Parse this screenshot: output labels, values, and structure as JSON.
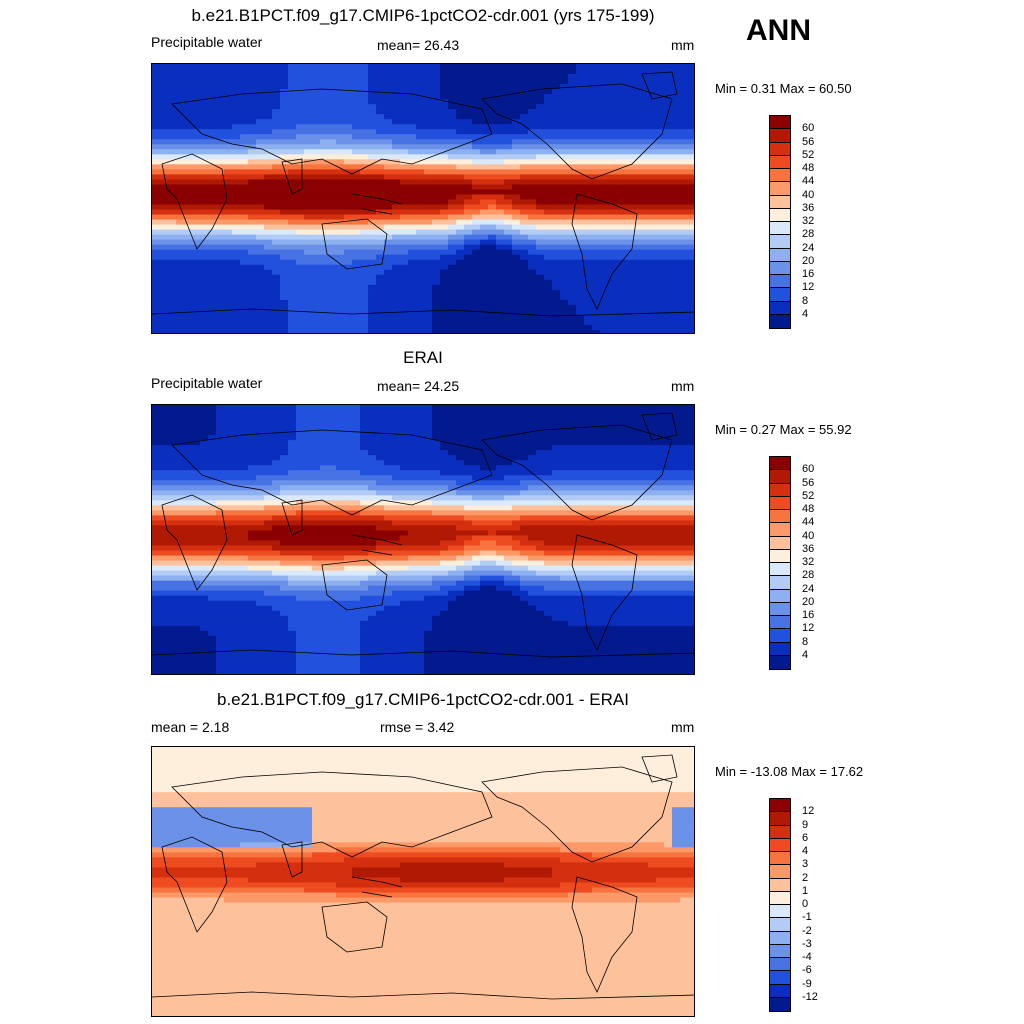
{
  "season": "ANN",
  "panels": [
    {
      "title": "b.e21.B1PCT.f09_g17.CMIP6-1pctCO2-cdr.001 (yrs 175-199)",
      "left_label": "Precipitable water",
      "center_label": "mean=  26.43",
      "units": "mm",
      "minmax": "Min =   0.31 Max =  60.50",
      "colorbar": {
        "labels": [
          "60",
          "56",
          "52",
          "48",
          "44",
          "40",
          "36",
          "32",
          "28",
          "24",
          "20",
          "16",
          "12",
          "8",
          "4"
        ],
        "colors": [
          "#8b0000",
          "#b01a04",
          "#d4300f",
          "#ee4b21",
          "#f7743f",
          "#fb9a68",
          "#fdc29c",
          "#feeedc",
          "#d9e8fb",
          "#b3ccf6",
          "#8db0f0",
          "#6b91e9",
          "#4672e4",
          "#2252dd",
          "#0a2fbf",
          "#031a8e"
        ]
      },
      "mean_value": 26.43,
      "map_style": "abs"
    },
    {
      "title": "ERAI",
      "left_label": "Precipitable water",
      "center_label": "mean=  24.25",
      "units": "mm",
      "minmax": "Min =   0.27 Max =  55.92",
      "colorbar": {
        "labels": [
          "60",
          "56",
          "52",
          "48",
          "44",
          "40",
          "36",
          "32",
          "28",
          "24",
          "20",
          "16",
          "12",
          "8",
          "4"
        ],
        "colors": [
          "#8b0000",
          "#b01a04",
          "#d4300f",
          "#ee4b21",
          "#f7743f",
          "#fb9a68",
          "#fdc29c",
          "#feeedc",
          "#d9e8fb",
          "#b3ccf6",
          "#8db0f0",
          "#6b91e9",
          "#4672e4",
          "#2252dd",
          "#0a2fbf",
          "#031a8e"
        ]
      },
      "mean_value": 24.25,
      "map_style": "abs2"
    },
    {
      "title": "b.e21.B1PCT.f09_g17.CMIP6-1pctCO2-cdr.001 - ERAI",
      "left_label": "mean =   2.18",
      "center_label": "rmse =   3.42",
      "units": "mm",
      "minmax": "Min = -13.08 Max =  17.62",
      "colorbar": {
        "labels": [
          "12",
          "9",
          "6",
          "4",
          "3",
          "2",
          "1",
          "0",
          "-1",
          "-2",
          "-3",
          "-4",
          "-6",
          "-9",
          "-12"
        ],
        "colors": [
          "#8b0000",
          "#b01a04",
          "#d4300f",
          "#ee4b21",
          "#f7743f",
          "#fb9a68",
          "#fdc29c",
          "#feeedc",
          "#d9e8fb",
          "#b3ccf6",
          "#8db0f0",
          "#6b91e9",
          "#4672e4",
          "#2252dd",
          "#0a2fbf",
          "#031a8e"
        ]
      },
      "mean_value": 2.18,
      "rmse_value": 3.42,
      "map_style": "diff"
    }
  ]
}
